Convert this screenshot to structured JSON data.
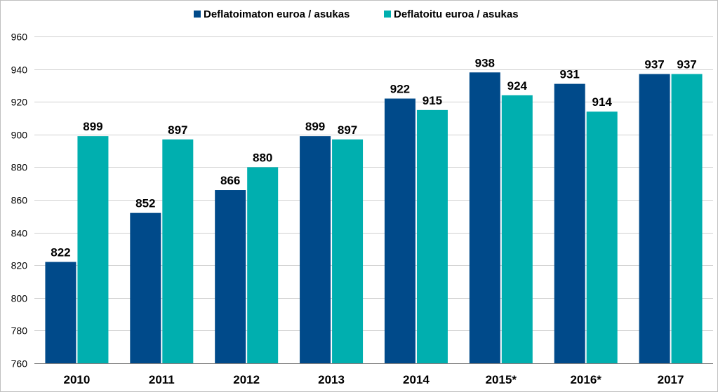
{
  "chart_data": {
    "type": "bar",
    "title": "",
    "xlabel": "",
    "ylabel": "",
    "categories": [
      "2010",
      "2011",
      "2012",
      "2013",
      "2014",
      "2015*",
      "2016*",
      "2017"
    ],
    "series": [
      {
        "name": "Deflatoimaton euroa / asukas",
        "color": "#004A8A",
        "values": [
          822,
          852,
          866,
          899,
          922,
          938,
          931,
          937
        ]
      },
      {
        "name": "Deflatoitu euroa / asukas",
        "color": "#00AFAF",
        "values": [
          899,
          897,
          880,
          897,
          915,
          924,
          914,
          937
        ]
      }
    ],
    "ylim": [
      760,
      960
    ],
    "yticks": [
      760,
      780,
      800,
      820,
      840,
      860,
      880,
      900,
      920,
      940,
      960
    ],
    "grid": true,
    "legend": "top-center",
    "data_labels": true
  }
}
